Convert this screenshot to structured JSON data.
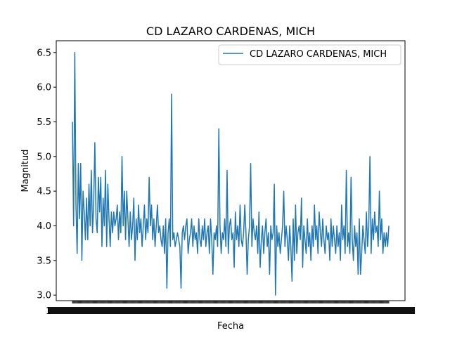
{
  "chart_data": {
    "type": "line",
    "title": "CD LAZARO CARDENAS, MICH",
    "xlabel": "Fecha",
    "ylabel": "Magnitud",
    "ylim": [
      2.92,
      6.67
    ],
    "yticks": [
      3.0,
      3.5,
      4.0,
      4.5,
      5.0,
      5.5,
      6.0,
      6.5
    ],
    "xtick_labels_note": "1",
    "x_tick_count": 430,
    "legend": {
      "placement": "top-right",
      "entries": [
        "CD LAZARO CARDENAS, MICH"
      ]
    },
    "grid": false,
    "color": "#1f77b4",
    "series": [
      {
        "name": "CD LAZARO CARDENAS, MICH",
        "values": [
          5.5,
          4.0,
          6.5,
          4.3,
          3.6,
          4.9,
          4.1,
          4.9,
          3.5,
          4.5,
          4.2,
          3.8,
          4.4,
          3.8,
          4.6,
          4.0,
          4.8,
          3.9,
          4.3,
          5.2,
          4.1,
          3.9,
          4.7,
          4.2,
          4.7,
          3.7,
          4.4,
          4.0,
          4.8,
          3.7,
          4.6,
          4.1,
          3.7,
          4.2,
          3.9,
          4.2,
          4.0,
          4.1,
          4.3,
          3.8,
          4.2,
          3.9,
          5.0,
          4.0,
          4.5,
          3.8,
          4.5,
          4.1,
          3.7,
          4.2,
          3.8,
          4.0,
          4.4,
          3.5,
          4.1,
          3.8,
          4.3,
          3.9,
          4.1,
          3.7,
          4.0,
          4.3,
          3.8,
          4.1,
          3.9,
          4.7,
          4.0,
          4.3,
          3.8,
          4.1,
          3.7,
          4.0,
          4.3,
          3.9,
          4.0,
          3.8,
          3.7,
          4.0,
          3.6,
          4.1,
          3.1,
          3.9,
          4.1,
          3.7,
          5.9,
          3.8,
          3.9,
          3.7,
          3.8,
          3.9,
          3.8,
          3.7,
          3.1,
          3.9,
          4.0,
          3.8,
          4.0,
          4.1,
          3.6,
          3.8,
          3.9,
          4.1,
          3.7,
          4.0,
          3.8,
          3.9,
          3.6,
          4.1,
          3.8,
          3.7,
          4.0,
          3.8,
          4.1,
          3.7,
          3.9,
          4.0,
          3.6,
          4.1,
          3.8,
          3.3,
          3.9,
          3.8,
          4.0,
          3.7,
          5.4,
          4.0,
          3.6,
          3.9,
          3.8,
          4.1,
          3.7,
          4.8,
          3.6,
          4.0,
          4.1,
          3.8,
          3.9,
          3.4,
          4.2,
          3.8,
          4.0,
          3.7,
          4.3,
          3.8,
          3.7,
          3.9,
          4.3,
          3.9,
          3.3,
          3.8,
          4.0,
          4.9,
          3.7,
          4.1,
          3.9,
          3.8,
          4.0,
          3.6,
          4.2,
          3.4,
          3.8,
          4.0,
          3.6,
          3.9,
          4.1,
          3.7,
          3.9,
          3.3,
          4.0,
          3.8,
          3.9,
          4.6,
          3.0,
          4.0,
          3.7,
          3.9,
          3.6,
          3.8,
          4.0,
          4.5,
          3.7,
          4.0,
          3.8,
          3.5,
          4.0,
          3.7,
          3.2,
          4.1,
          3.5,
          4.3,
          3.6,
          3.9,
          4.0,
          3.8,
          4.4,
          3.4,
          4.0,
          3.8,
          3.6,
          4.1,
          3.7,
          3.9,
          3.5,
          4.0,
          3.7,
          4.3,
          3.8,
          4.0,
          3.6,
          4.2,
          3.9,
          3.7,
          4.1,
          3.8,
          3.6,
          4.0,
          3.8,
          3.9,
          3.5,
          4.1,
          3.7,
          4.0,
          3.8,
          3.6,
          4.0,
          3.7,
          3.9,
          3.5,
          4.3,
          3.8,
          4.0,
          3.6,
          4.8,
          3.7,
          3.9,
          3.6,
          4.7,
          3.8,
          3.5,
          4.0,
          3.7,
          3.9,
          3.3,
          4.1,
          3.3,
          3.6,
          4.0,
          3.8,
          3.6,
          4.2,
          3.7,
          4.0,
          5.0,
          3.6,
          4.1,
          3.8,
          4.2,
          3.9,
          4.0,
          3.7,
          4.5,
          3.8,
          4.1,
          3.6,
          3.9,
          3.7,
          3.9,
          3.7,
          4.0
        ]
      }
    ]
  }
}
